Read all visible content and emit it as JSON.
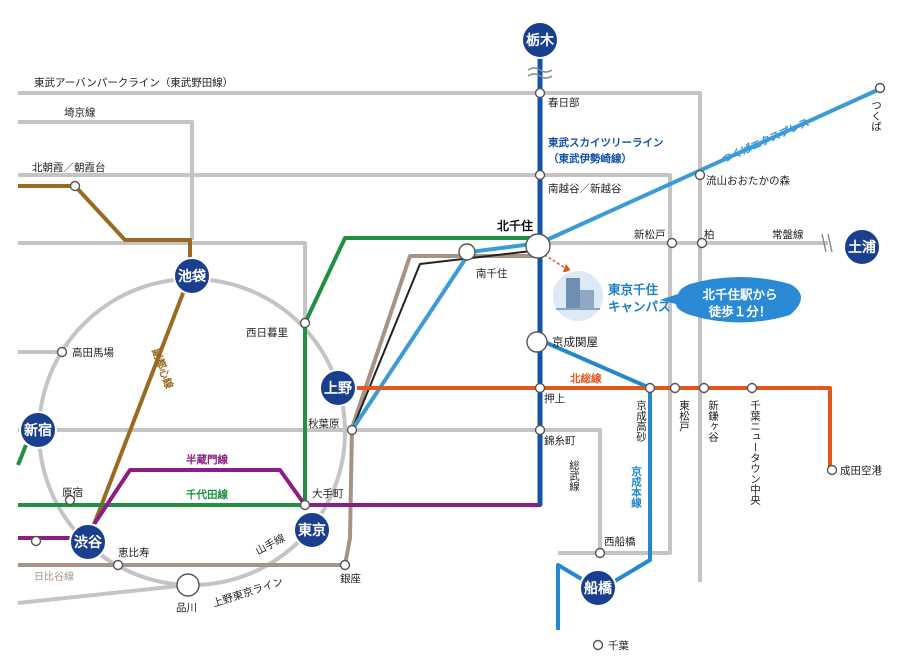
{
  "colors": {
    "gray_line": "#c4c4c4",
    "jr_green": "#219040",
    "hibiya_taupe": "#a89284",
    "fukutoshin_brown": "#9a6a22",
    "hanzomon_purple": "#8a1e86",
    "skytree_blue": "#1053a8",
    "tx_blue": "#3b9ad8",
    "keisei_blue": "#2388cf",
    "hokuso_orange": "#e2581b",
    "hub_navy": "#1b3f8f",
    "campus_blue": "#1a7fc8",
    "callout_blue": "#2a8ad6"
  },
  "hubs": {
    "tochigi": "栃木",
    "tsuchiura": "土浦",
    "ikebukuro": "池袋",
    "ueno": "上野",
    "shinjuku": "新宿",
    "tokyo": "東京",
    "shibuya": "渋谷",
    "funabashi": "船橋"
  },
  "major_station": {
    "kitasenju": "北千住"
  },
  "stations": {
    "kasukabe": "春日部",
    "minamikoshigaya": "南越谷／新越谷",
    "minamisenju": "南千住",
    "keisei_sekiya": "京成関屋",
    "oshiage": "押上",
    "kinshicho": "錦糸町",
    "nishi_funabashi": "西船橋",
    "chiba": "千葉",
    "kita_asaka": "北朝霞／朝霞台",
    "takadanobaba": "高田馬場",
    "nishi_nippori": "西日暮里",
    "akihabara": "秋葉原",
    "otemachi": "大手町",
    "harajuku": "原宿",
    "ebisu": "恵比寿",
    "shinagawa": "品川",
    "ginza": "銀座",
    "nagareyama": "流山おおたかの森",
    "shin_matsudo": "新松戸",
    "kashiwa": "柏",
    "tsukuba": "つくば",
    "keisei_takasago": "京成高砂",
    "higashi_matsudo": "東松戸",
    "shin_kamagaya": "新鎌ヶ谷",
    "chiba_newtown": "千葉ニュータウン中央",
    "narita_airport": "成田空港"
  },
  "lines": {
    "tobu_urban": "東武アーバンパークライン（東武野田線）",
    "saikyo": "埼京線",
    "skytree_1": "東武スカイツリーライン",
    "skytree_2": "（東武伊勢崎線）",
    "tsukuba_express": "つくばエクスプレス",
    "joban": "常盤線",
    "fukutoshin": "副都心線",
    "hanzomon": "半蔵門線",
    "chiyoda": "千代田線",
    "hokuso": "北総線",
    "sobu": "総武線",
    "keisei_main": "京成本線",
    "yamanote": "山手線",
    "ueno_tokyo": "上野東京ライン",
    "hibiya": "日比谷線"
  },
  "campus": {
    "name_1": "東京千住",
    "name_2": "キャンパス",
    "icon": "campus-building-icon"
  },
  "callout": {
    "line_1": "北千住駅から",
    "line_2": "徒歩１分！"
  }
}
